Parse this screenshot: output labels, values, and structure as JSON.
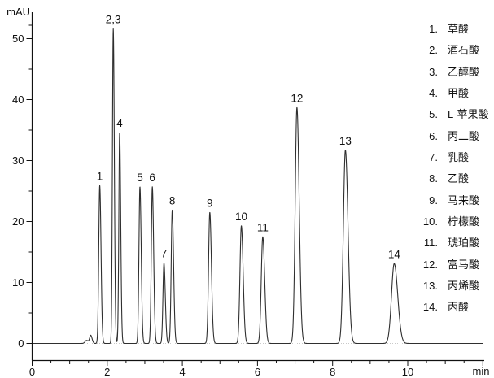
{
  "chart_data": {
    "type": "line",
    "title": "",
    "xlabel": "min",
    "ylabel": "mAU",
    "x_range": [
      0,
      12
    ],
    "y_range": [
      0,
      54
    ],
    "x_ticks_labeled": [
      0,
      2,
      4,
      6,
      8,
      10
    ],
    "x_minor_tick_interval": 0.5,
    "y_ticks_labeled": [
      0,
      10,
      20,
      30,
      40,
      50
    ],
    "y_minor_tick_interval": 5,
    "grid": false,
    "legend_position": "right",
    "peak_tailing_factor": 1.3,
    "peaks": [
      {
        "label": "1",
        "compound": "草酸",
        "rt_min": 1.8,
        "height_mau": 25.9,
        "sigma_min": 0.026
      },
      {
        "label": "2,3",
        "compound": "酒石酸 / 乙醇酸",
        "rt_min": 2.16,
        "height_mau": 51.6,
        "sigma_min": 0.022
      },
      {
        "label": "4",
        "compound": "甲酸",
        "rt_min": 2.33,
        "height_mau": 34.6,
        "sigma_min": 0.022
      },
      {
        "label": "5",
        "compound": "L-苹果酸",
        "rt_min": 2.87,
        "height_mau": 25.7,
        "sigma_min": 0.026
      },
      {
        "label": "6",
        "compound": "丙二酸",
        "rt_min": 3.2,
        "height_mau": 25.7,
        "sigma_min": 0.027
      },
      {
        "label": "7",
        "compound": "乳酸",
        "rt_min": 3.51,
        "height_mau": 13.2,
        "sigma_min": 0.027
      },
      {
        "label": "8",
        "compound": "乙酸",
        "rt_min": 3.73,
        "height_mau": 21.9,
        "sigma_min": 0.028
      },
      {
        "label": "9",
        "compound": "马来酸",
        "rt_min": 4.73,
        "height_mau": 21.5,
        "sigma_min": 0.033
      },
      {
        "label": "10",
        "compound": "柠檬酸",
        "rt_min": 5.57,
        "height_mau": 19.3,
        "sigma_min": 0.037
      },
      {
        "label": "11",
        "compound": "琥珀酸",
        "rt_min": 6.14,
        "height_mau": 17.5,
        "sigma_min": 0.04
      },
      {
        "label": "12",
        "compound": "富马酸",
        "rt_min": 7.05,
        "height_mau": 38.7,
        "sigma_min": 0.046
      },
      {
        "label": "13",
        "compound": "丙烯酸",
        "rt_min": 8.34,
        "height_mau": 31.7,
        "sigma_min": 0.054
      },
      {
        "label": "14",
        "compound": "丙酸",
        "rt_min": 9.64,
        "height_mau": 13.1,
        "sigma_min": 0.072
      }
    ],
    "baseline_artifacts": [
      {
        "rt_min": 1.45,
        "height_mau": 0.5,
        "sigma_min": 0.04
      },
      {
        "rt_min": 1.56,
        "height_mau": 1.3,
        "sigma_min": 0.028
      }
    ]
  },
  "legend": {
    "items": [
      {
        "number": "1.",
        "name": "草酸"
      },
      {
        "number": "2.",
        "name": "酒石酸"
      },
      {
        "number": "3.",
        "name": "乙醇酸"
      },
      {
        "number": "4.",
        "name": "甲酸"
      },
      {
        "number": "5.",
        "name": "L-苹果酸"
      },
      {
        "number": "6.",
        "name": "丙二酸"
      },
      {
        "number": "7.",
        "name": "乳酸"
      },
      {
        "number": "8.",
        "name": "乙酸"
      },
      {
        "number": "9.",
        "name": "马来酸"
      },
      {
        "number": "10.",
        "name": "柠檬酸"
      },
      {
        "number": "11.",
        "name": "琥珀酸"
      },
      {
        "number": "12.",
        "name": "富马酸"
      },
      {
        "number": "13.",
        "name": "丙烯酸"
      },
      {
        "number": "14.",
        "name": "丙酸"
      }
    ]
  },
  "colors": {
    "trace": "#2f2f2f",
    "axis": "#111111",
    "text": "#111111",
    "zero_line": "#c9c9c9",
    "background": "#ffffff"
  }
}
